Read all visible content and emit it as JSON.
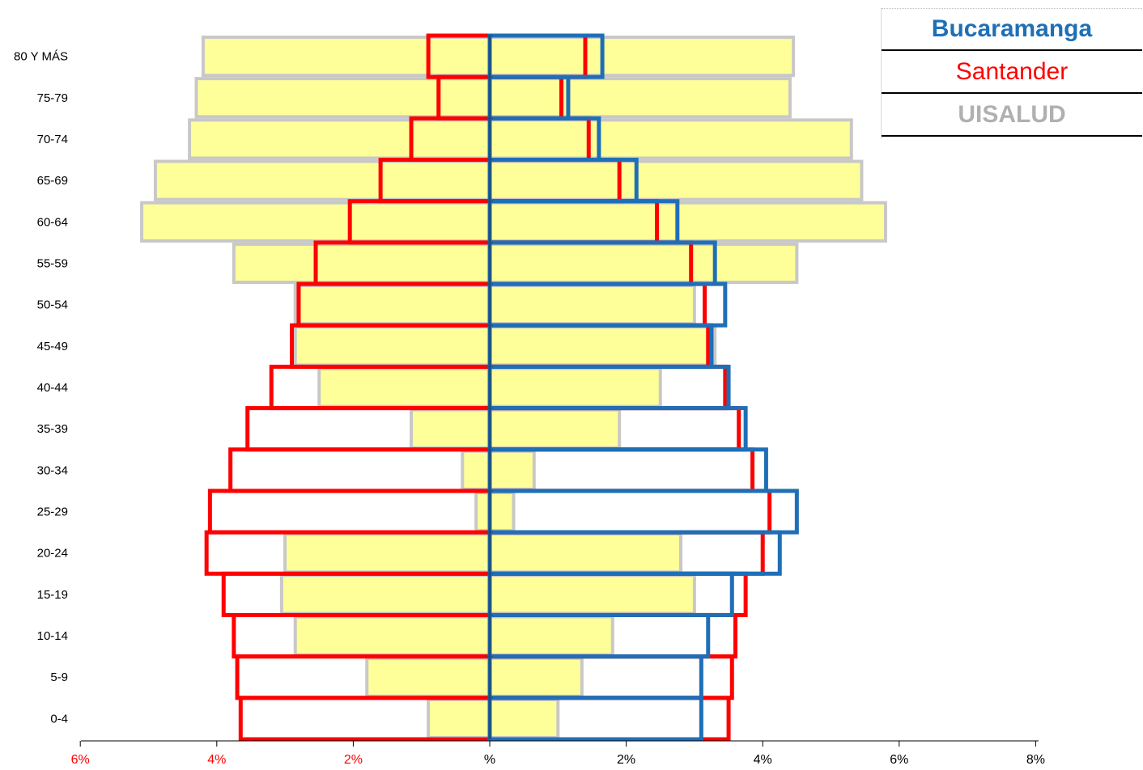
{
  "chart_data": {
    "type": "bar",
    "subtype": "population-pyramid",
    "categories": [
      "0-4",
      "5-9",
      "10-14",
      "15-19",
      "20-24",
      "25-29",
      "30-34",
      "35-39",
      "40-44",
      "45-49",
      "50-54",
      "55-59",
      "60-64",
      "65-69",
      "70-74",
      "75-79",
      "80 Y MÁS"
    ],
    "x_ticks": [
      {
        "value": -6,
        "label": "6%"
      },
      {
        "value": -4,
        "label": "4%"
      },
      {
        "value": -2,
        "label": "2%"
      },
      {
        "value": 0,
        "label": "%"
      },
      {
        "value": 2,
        "label": "2%"
      },
      {
        "value": 4,
        "label": "4%"
      },
      {
        "value": 6,
        "label": "6%"
      },
      {
        "value": 8,
        "label": "8%"
      }
    ],
    "xlim": [
      -6,
      8
    ],
    "series": [
      {
        "name": "UISALUD",
        "color": "#c8c8c8",
        "fill": "#ffff99",
        "left_values": [
          0.9,
          1.8,
          2.85,
          3.05,
          3.0,
          0.2,
          0.4,
          1.15,
          2.5,
          2.85,
          2.85,
          3.75,
          5.1,
          4.9,
          4.4,
          4.3,
          4.2
        ],
        "right_values": [
          1.0,
          1.35,
          1.8,
          3.0,
          2.8,
          0.35,
          0.65,
          1.9,
          2.5,
          3.3,
          3.0,
          4.5,
          5.8,
          5.45,
          5.3,
          4.4,
          4.45
        ]
      },
      {
        "name": "Santander",
        "color": "#ff0000",
        "left_values": [
          3.65,
          3.7,
          3.75,
          3.9,
          4.15,
          4.1,
          3.8,
          3.55,
          3.2,
          2.9,
          2.8,
          2.55,
          2.05,
          1.6,
          1.15,
          0.75,
          0.9
        ],
        "right_values": [
          3.5,
          3.55,
          3.6,
          3.75,
          4.0,
          4.1,
          3.85,
          3.65,
          3.45,
          3.2,
          3.15,
          2.95,
          2.45,
          1.9,
          1.45,
          1.05,
          1.4
        ]
      },
      {
        "name": "Bucaramanga",
        "color": "#1f6fb7",
        "right_values": [
          3.1,
          3.1,
          3.2,
          3.55,
          4.25,
          4.5,
          4.05,
          3.75,
          3.5,
          3.25,
          3.45,
          3.3,
          2.75,
          2.15,
          1.6,
          1.15,
          1.65
        ]
      }
    ],
    "legend": {
      "placement": "top-right",
      "entries": [
        {
          "label": "Bucaramanga",
          "color": "#1f6fb7"
        },
        {
          "label": "Santander",
          "color": "#ff0000"
        },
        {
          "label": "UISALUD",
          "color": "#b0b0b0"
        }
      ]
    },
    "grid": false,
    "title": "",
    "xlabel": "",
    "ylabel": ""
  }
}
